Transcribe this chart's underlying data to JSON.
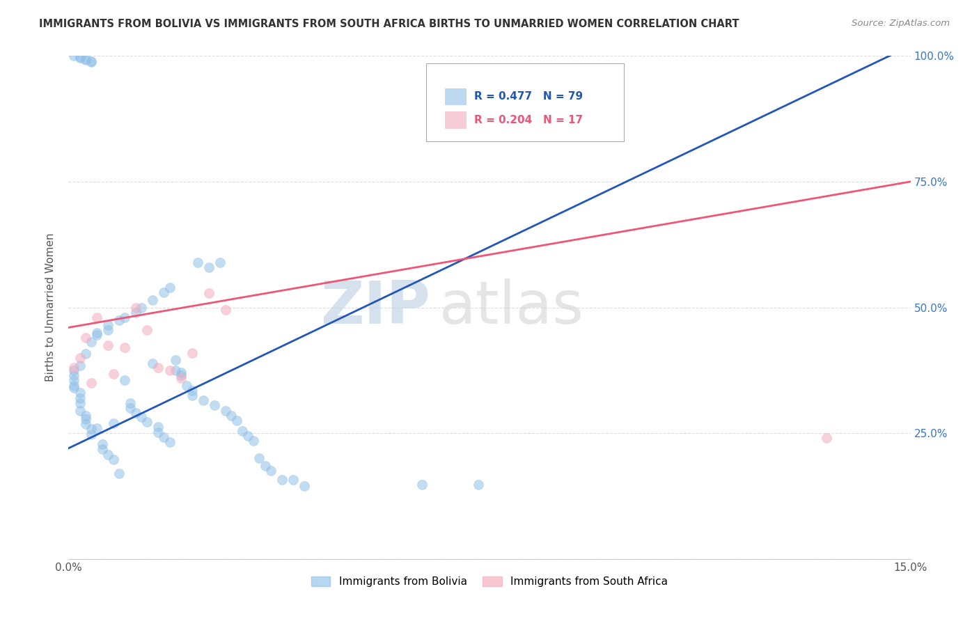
{
  "title": "IMMIGRANTS FROM BOLIVIA VS IMMIGRANTS FROM SOUTH AFRICA BIRTHS TO UNMARRIED WOMEN CORRELATION CHART",
  "source": "Source: ZipAtlas.com",
  "ylabel": "Births to Unmarried Women",
  "legend_label_1": "Immigrants from Bolivia",
  "legend_label_2": "Immigrants from South Africa",
  "r1": 0.477,
  "n1": 79,
  "r2": 0.204,
  "n2": 17,
  "color1": "#91C0E8",
  "color2": "#F4AABB",
  "trend_color1": "#2255BB",
  "trend_color2": "#EE5577",
  "xlim": [
    0.0,
    0.15
  ],
  "ylim": [
    0.0,
    1.0
  ],
  "watermark_zip": "ZIP",
  "watermark_atlas": "atlas",
  "background_color": "#FFFFFF",
  "grid_color": "#DDDDDD",
  "bolivia_x": [
    0.001,
    0.001,
    0.001,
    0.001,
    0.001,
    0.002,
    0.002,
    0.002,
    0.002,
    0.002,
    0.003,
    0.003,
    0.003,
    0.003,
    0.004,
    0.004,
    0.004,
    0.005,
    0.005,
    0.005,
    0.006,
    0.006,
    0.007,
    0.007,
    0.007,
    0.008,
    0.008,
    0.009,
    0.009,
    0.01,
    0.01,
    0.011,
    0.011,
    0.012,
    0.012,
    0.013,
    0.013,
    0.014,
    0.015,
    0.015,
    0.016,
    0.016,
    0.017,
    0.017,
    0.018,
    0.018,
    0.019,
    0.019,
    0.02,
    0.02,
    0.021,
    0.022,
    0.022,
    0.023,
    0.024,
    0.025,
    0.026,
    0.027,
    0.028,
    0.029,
    0.03,
    0.031,
    0.032,
    0.033,
    0.034,
    0.035,
    0.036,
    0.038,
    0.04,
    0.042,
    0.001,
    0.002,
    0.002,
    0.003,
    0.003,
    0.004,
    0.004,
    0.063,
    0.073
  ],
  "bolivia_y": [
    0.365,
    0.355,
    0.345,
    0.375,
    0.34,
    0.33,
    0.385,
    0.32,
    0.31,
    0.295,
    0.285,
    0.408,
    0.278,
    0.268,
    0.432,
    0.258,
    0.248,
    0.26,
    0.445,
    0.45,
    0.228,
    0.218,
    0.455,
    0.465,
    0.208,
    0.198,
    0.27,
    0.475,
    0.17,
    0.48,
    0.355,
    0.31,
    0.3,
    0.49,
    0.29,
    0.5,
    0.282,
    0.272,
    0.388,
    0.515,
    0.262,
    0.252,
    0.242,
    0.53,
    0.232,
    0.54,
    0.395,
    0.375,
    0.37,
    0.365,
    0.345,
    0.335,
    0.325,
    0.59,
    0.315,
    0.58,
    0.305,
    0.59,
    0.295,
    0.285,
    0.275,
    0.255,
    0.245,
    0.235,
    0.2,
    0.185,
    0.175,
    0.158,
    0.158,
    0.145,
    1.0,
    0.998,
    0.996,
    0.994,
    0.992,
    0.99,
    0.988,
    0.148,
    0.148
  ],
  "sa_x": [
    0.001,
    0.002,
    0.003,
    0.004,
    0.005,
    0.007,
    0.008,
    0.01,
    0.012,
    0.014,
    0.016,
    0.018,
    0.02,
    0.022,
    0.025,
    0.028,
    0.135
  ],
  "sa_y": [
    0.38,
    0.4,
    0.44,
    0.35,
    0.48,
    0.425,
    0.368,
    0.42,
    0.5,
    0.455,
    0.38,
    0.375,
    0.36,
    0.41,
    0.528,
    0.495,
    0.24
  ]
}
